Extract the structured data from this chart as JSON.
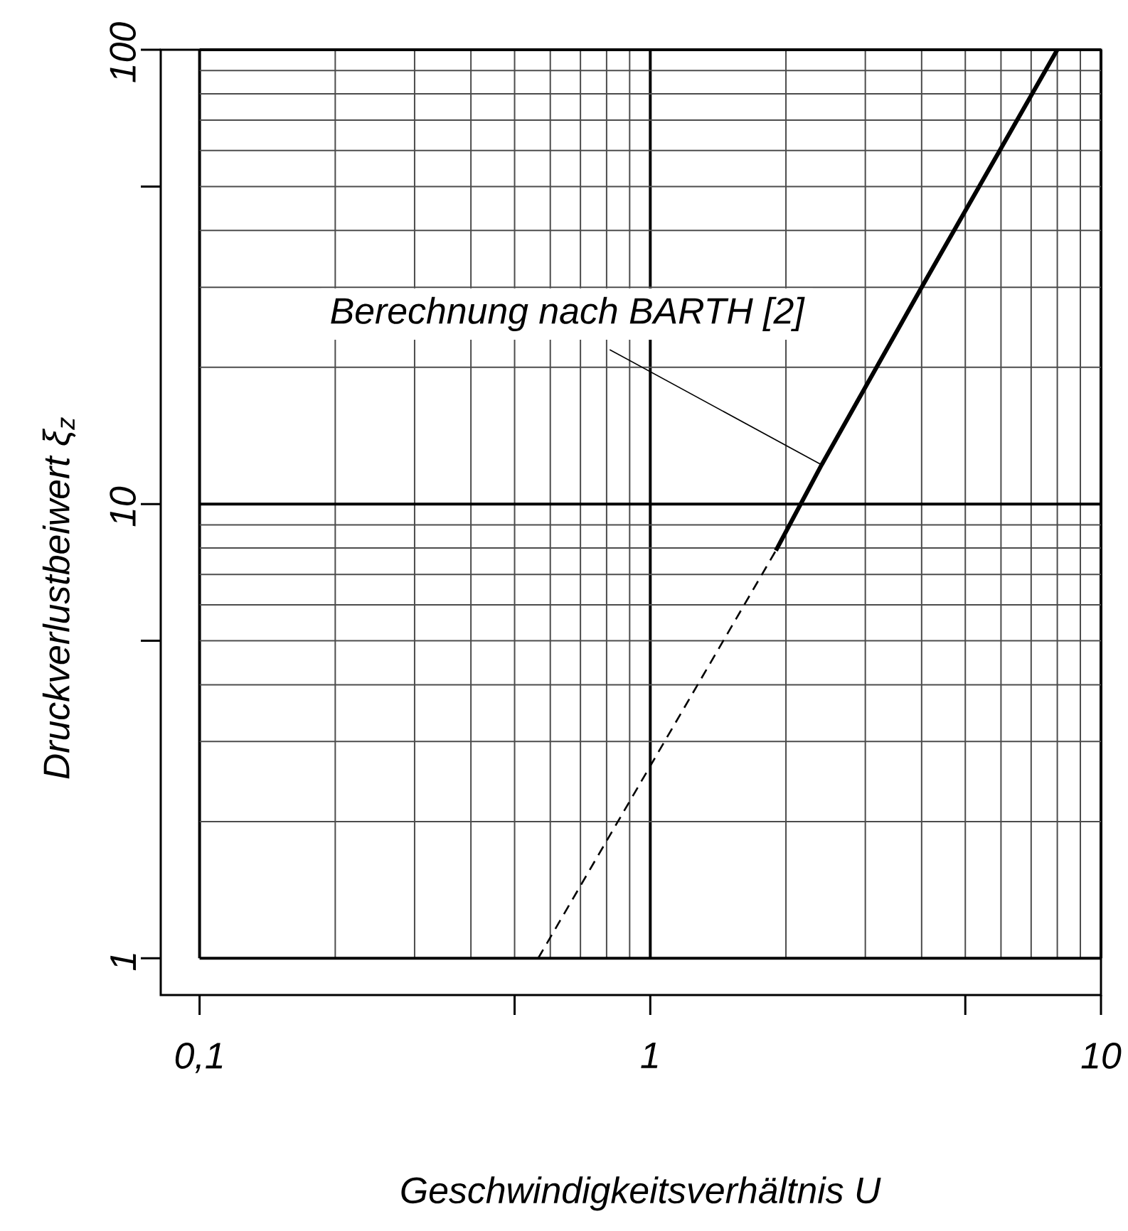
{
  "chart_data": {
    "type": "line",
    "xlabel": "Geschwindigkeitsverhältnis U",
    "ylabel": "Druckverlustbeiwert ξ$_{z}$",
    "log": "xy",
    "grid": true,
    "xlim": [
      0.082,
      10
    ],
    "ylim": [
      0.83,
      100
    ],
    "xticks": [
      {
        "value": 0.1,
        "label": "0,1"
      },
      {
        "value": 0.5,
        "label": null
      },
      1,
      {
        "value": 5,
        "label": null
      },
      10
    ],
    "yticks": [
      1,
      {
        "value": 5,
        "label": null
      },
      10,
      {
        "value": 50,
        "label": null
      },
      100
    ],
    "series": [
      {
        "color": "#000000",
        "line_style": "solid",
        "x": [
          1.9,
          2.4,
          4,
          8
        ],
        "values": [
          7.9,
          12.2,
          30,
          100
        ]
      },
      {
        "color": "#000000",
        "line_style": "dashed",
        "x": [
          0.564,
          1.9
        ],
        "values": [
          1,
          7.9
        ]
      }
    ],
    "annotations": [
      {
        "text": "Berechnung nach BARTH [2]",
        "x": 2.4,
        "y": 12.2
      }
    ]
  }
}
